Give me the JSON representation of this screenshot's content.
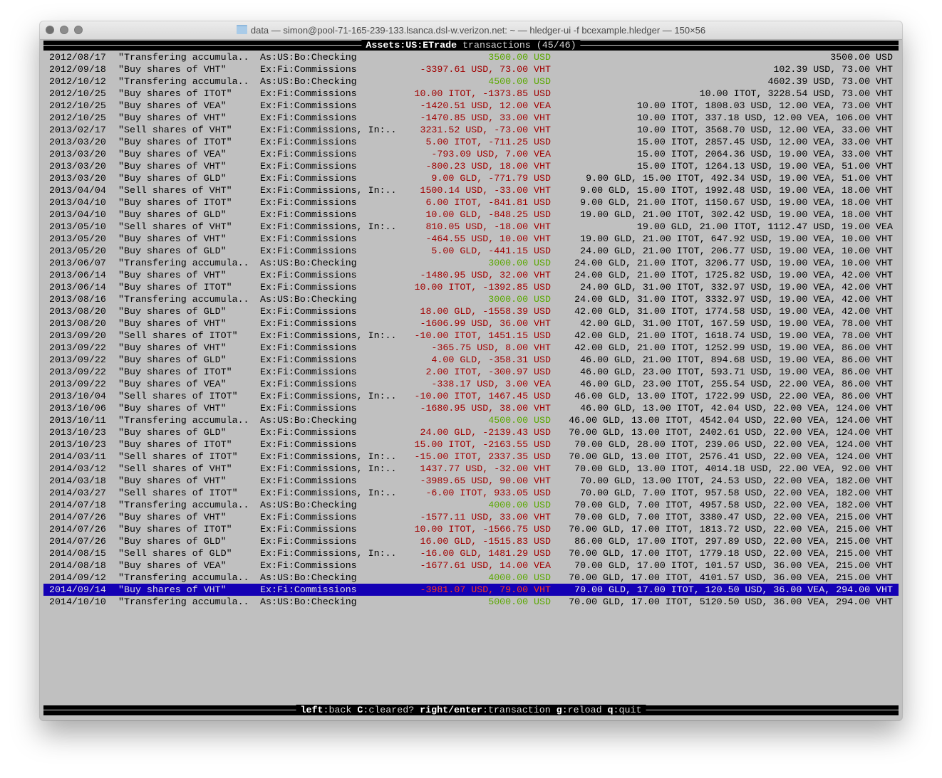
{
  "window": {
    "title": "data — simon@pool-71-165-239-133.lsanca.dsl-w.verizon.net: ~ — hledger-ui -f bcexample.hledger — 150×56"
  },
  "header": {
    "account": "Assets:US:ETrade",
    "suffix": " transactions (45/46)"
  },
  "footer": {
    "keys": [
      {
        "key": "left",
        "action": "back"
      },
      {
        "key": "C",
        "action": "cleared?"
      },
      {
        "key": "right/enter",
        "action": "transaction"
      },
      {
        "key": "g",
        "action": "reload"
      },
      {
        "key": "q",
        "action": "quit"
      }
    ]
  },
  "colors": {
    "terminal_bg": "#c0c0c0",
    "negative_amount": "#a00000",
    "positive_amount": "#5aa800",
    "selection_bg": "#1400b4"
  },
  "selected_index": 44,
  "rows": [
    {
      "date": "2012/08/17",
      "desc": "\"Transfering accumula..",
      "acct": "As:US:Bo:Checking",
      "amt": "3500.00 USD",
      "color": "green",
      "bal": "3500.00 USD"
    },
    {
      "date": "2012/09/18",
      "desc": "\"Buy shares of VHT\"",
      "acct": "Ex:Fi:Commissions",
      "amt": "-3397.61 USD, 73.00 VHT",
      "color": "red",
      "bal": "102.39 USD, 73.00 VHT"
    },
    {
      "date": "2012/10/12",
      "desc": "\"Transfering accumula..",
      "acct": "As:US:Bo:Checking",
      "amt": "4500.00 USD",
      "color": "green",
      "bal": "4602.39 USD, 73.00 VHT"
    },
    {
      "date": "2012/10/25",
      "desc": "\"Buy shares of ITOT\"",
      "acct": "Ex:Fi:Commissions",
      "amt": "10.00 ITOT, -1373.85 USD",
      "color": "red",
      "bal": "10.00 ITOT, 3228.54 USD, 73.00 VHT"
    },
    {
      "date": "2012/10/25",
      "desc": "\"Buy shares of VEA\"",
      "acct": "Ex:Fi:Commissions",
      "amt": "-1420.51 USD, 12.00 VEA",
      "color": "red",
      "bal": "10.00 ITOT, 1808.03 USD, 12.00 VEA, 73.00 VHT"
    },
    {
      "date": "2012/10/25",
      "desc": "\"Buy shares of VHT\"",
      "acct": "Ex:Fi:Commissions",
      "amt": "-1470.85 USD, 33.00 VHT",
      "color": "red",
      "bal": "10.00 ITOT, 337.18 USD, 12.00 VEA, 106.00 VHT"
    },
    {
      "date": "2013/02/17",
      "desc": "\"Sell shares of VHT\"",
      "acct": "Ex:Fi:Commissions, In:..",
      "amt": "3231.52 USD, -73.00 VHT",
      "color": "red",
      "bal": "10.00 ITOT, 3568.70 USD, 12.00 VEA, 33.00 VHT"
    },
    {
      "date": "2013/03/20",
      "desc": "\"Buy shares of ITOT\"",
      "acct": "Ex:Fi:Commissions",
      "amt": "5.00 ITOT, -711.25 USD",
      "color": "red",
      "bal": "15.00 ITOT, 2857.45 USD, 12.00 VEA, 33.00 VHT"
    },
    {
      "date": "2013/03/20",
      "desc": "\"Buy shares of VEA\"",
      "acct": "Ex:Fi:Commissions",
      "amt": "-793.09 USD, 7.00 VEA",
      "color": "red",
      "bal": "15.00 ITOT, 2064.36 USD, 19.00 VEA, 33.00 VHT"
    },
    {
      "date": "2013/03/20",
      "desc": "\"Buy shares of VHT\"",
      "acct": "Ex:Fi:Commissions",
      "amt": "-800.23 USD, 18.00 VHT",
      "color": "red",
      "bal": "15.00 ITOT, 1264.13 USD, 19.00 VEA, 51.00 VHT"
    },
    {
      "date": "2013/03/20",
      "desc": "\"Buy shares of GLD\"",
      "acct": "Ex:Fi:Commissions",
      "amt": "9.00 GLD, -771.79 USD",
      "color": "red",
      "bal": "9.00 GLD, 15.00 ITOT, 492.34 USD, 19.00 VEA, 51.00 VHT"
    },
    {
      "date": "2013/04/04",
      "desc": "\"Sell shares of VHT\"",
      "acct": "Ex:Fi:Commissions, In:..",
      "amt": "1500.14 USD, -33.00 VHT",
      "color": "red",
      "bal": "9.00 GLD, 15.00 ITOT, 1992.48 USD, 19.00 VEA, 18.00 VHT"
    },
    {
      "date": "2013/04/10",
      "desc": "\"Buy shares of ITOT\"",
      "acct": "Ex:Fi:Commissions",
      "amt": "6.00 ITOT, -841.81 USD",
      "color": "red",
      "bal": "9.00 GLD, 21.00 ITOT, 1150.67 USD, 19.00 VEA, 18.00 VHT"
    },
    {
      "date": "2013/04/10",
      "desc": "\"Buy shares of GLD\"",
      "acct": "Ex:Fi:Commissions",
      "amt": "10.00 GLD, -848.25 USD",
      "color": "red",
      "bal": "19.00 GLD, 21.00 ITOT, 302.42 USD, 19.00 VEA, 18.00 VHT"
    },
    {
      "date": "2013/05/10",
      "desc": "\"Sell shares of VHT\"",
      "acct": "Ex:Fi:Commissions, In:..",
      "amt": "810.05 USD, -18.00 VHT",
      "color": "red",
      "bal": "19.00 GLD, 21.00 ITOT, 1112.47 USD, 19.00 VEA"
    },
    {
      "date": "2013/05/20",
      "desc": "\"Buy shares of VHT\"",
      "acct": "Ex:Fi:Commissions",
      "amt": "-464.55 USD, 10.00 VHT",
      "color": "red",
      "bal": "19.00 GLD, 21.00 ITOT, 647.92 USD, 19.00 VEA, 10.00 VHT"
    },
    {
      "date": "2013/05/20",
      "desc": "\"Buy shares of GLD\"",
      "acct": "Ex:Fi:Commissions",
      "amt": "5.00 GLD, -441.15 USD",
      "color": "red",
      "bal": "24.00 GLD, 21.00 ITOT, 206.77 USD, 19.00 VEA, 10.00 VHT"
    },
    {
      "date": "2013/06/07",
      "desc": "\"Transfering accumula..",
      "acct": "As:US:Bo:Checking",
      "amt": "3000.00 USD",
      "color": "green",
      "bal": "24.00 GLD, 21.00 ITOT, 3206.77 USD, 19.00 VEA, 10.00 VHT"
    },
    {
      "date": "2013/06/14",
      "desc": "\"Buy shares of VHT\"",
      "acct": "Ex:Fi:Commissions",
      "amt": "-1480.95 USD, 32.00 VHT",
      "color": "red",
      "bal": "24.00 GLD, 21.00 ITOT, 1725.82 USD, 19.00 VEA, 42.00 VHT"
    },
    {
      "date": "2013/06/14",
      "desc": "\"Buy shares of ITOT\"",
      "acct": "Ex:Fi:Commissions",
      "amt": "10.00 ITOT, -1392.85 USD",
      "color": "red",
      "bal": "24.00 GLD, 31.00 ITOT, 332.97 USD, 19.00 VEA, 42.00 VHT"
    },
    {
      "date": "2013/08/16",
      "desc": "\"Transfering accumula..",
      "acct": "As:US:Bo:Checking",
      "amt": "3000.00 USD",
      "color": "green",
      "bal": "24.00 GLD, 31.00 ITOT, 3332.97 USD, 19.00 VEA, 42.00 VHT"
    },
    {
      "date": "2013/08/20",
      "desc": "\"Buy shares of GLD\"",
      "acct": "Ex:Fi:Commissions",
      "amt": "18.00 GLD, -1558.39 USD",
      "color": "red",
      "bal": "42.00 GLD, 31.00 ITOT, 1774.58 USD, 19.00 VEA, 42.00 VHT"
    },
    {
      "date": "2013/08/20",
      "desc": "\"Buy shares of VHT\"",
      "acct": "Ex:Fi:Commissions",
      "amt": "-1606.99 USD, 36.00 VHT",
      "color": "red",
      "bal": "42.00 GLD, 31.00 ITOT, 167.59 USD, 19.00 VEA, 78.00 VHT"
    },
    {
      "date": "2013/09/20",
      "desc": "\"Sell shares of ITOT\"",
      "acct": "Ex:Fi:Commissions, In:..",
      "amt": "-10.00 ITOT, 1451.15 USD",
      "color": "red",
      "bal": "42.00 GLD, 21.00 ITOT, 1618.74 USD, 19.00 VEA, 78.00 VHT"
    },
    {
      "date": "2013/09/22",
      "desc": "\"Buy shares of VHT\"",
      "acct": "Ex:Fi:Commissions",
      "amt": "-365.75 USD, 8.00 VHT",
      "color": "red",
      "bal": "42.00 GLD, 21.00 ITOT, 1252.99 USD, 19.00 VEA, 86.00 VHT"
    },
    {
      "date": "2013/09/22",
      "desc": "\"Buy shares of GLD\"",
      "acct": "Ex:Fi:Commissions",
      "amt": "4.00 GLD, -358.31 USD",
      "color": "red",
      "bal": "46.00 GLD, 21.00 ITOT, 894.68 USD, 19.00 VEA, 86.00 VHT"
    },
    {
      "date": "2013/09/22",
      "desc": "\"Buy shares of ITOT\"",
      "acct": "Ex:Fi:Commissions",
      "amt": "2.00 ITOT, -300.97 USD",
      "color": "red",
      "bal": "46.00 GLD, 23.00 ITOT, 593.71 USD, 19.00 VEA, 86.00 VHT"
    },
    {
      "date": "2013/09/22",
      "desc": "\"Buy shares of VEA\"",
      "acct": "Ex:Fi:Commissions",
      "amt": "-338.17 USD, 3.00 VEA",
      "color": "red",
      "bal": "46.00 GLD, 23.00 ITOT, 255.54 USD, 22.00 VEA, 86.00 VHT"
    },
    {
      "date": "2013/10/04",
      "desc": "\"Sell shares of ITOT\"",
      "acct": "Ex:Fi:Commissions, In:..",
      "amt": "-10.00 ITOT, 1467.45 USD",
      "color": "red",
      "bal": "46.00 GLD, 13.00 ITOT, 1722.99 USD, 22.00 VEA, 86.00 VHT"
    },
    {
      "date": "2013/10/06",
      "desc": "\"Buy shares of VHT\"",
      "acct": "Ex:Fi:Commissions",
      "amt": "-1680.95 USD, 38.00 VHT",
      "color": "red",
      "bal": "46.00 GLD, 13.00 ITOT, 42.04 USD, 22.00 VEA, 124.00 VHT"
    },
    {
      "date": "2013/10/11",
      "desc": "\"Transfering accumula..",
      "acct": "As:US:Bo:Checking",
      "amt": "4500.00 USD",
      "color": "green",
      "bal": "46.00 GLD, 13.00 ITOT, 4542.04 USD, 22.00 VEA, 124.00 VHT"
    },
    {
      "date": "2013/10/23",
      "desc": "\"Buy shares of GLD\"",
      "acct": "Ex:Fi:Commissions",
      "amt": "24.00 GLD, -2139.43 USD",
      "color": "red",
      "bal": "70.00 GLD, 13.00 ITOT, 2402.61 USD, 22.00 VEA, 124.00 VHT"
    },
    {
      "date": "2013/10/23",
      "desc": "\"Buy shares of ITOT\"",
      "acct": "Ex:Fi:Commissions",
      "amt": "15.00 ITOT, -2163.55 USD",
      "color": "red",
      "bal": "70.00 GLD, 28.00 ITOT, 239.06 USD, 22.00 VEA, 124.00 VHT"
    },
    {
      "date": "2014/03/11",
      "desc": "\"Sell shares of ITOT\"",
      "acct": "Ex:Fi:Commissions, In:..",
      "amt": "-15.00 ITOT, 2337.35 USD",
      "color": "red",
      "bal": "70.00 GLD, 13.00 ITOT, 2576.41 USD, 22.00 VEA, 124.00 VHT"
    },
    {
      "date": "2014/03/12",
      "desc": "\"Sell shares of VHT\"",
      "acct": "Ex:Fi:Commissions, In:..",
      "amt": "1437.77 USD, -32.00 VHT",
      "color": "red",
      "bal": "70.00 GLD, 13.00 ITOT, 4014.18 USD, 22.00 VEA, 92.00 VHT"
    },
    {
      "date": "2014/03/18",
      "desc": "\"Buy shares of VHT\"",
      "acct": "Ex:Fi:Commissions",
      "amt": "-3989.65 USD, 90.00 VHT",
      "color": "red",
      "bal": "70.00 GLD, 13.00 ITOT, 24.53 USD, 22.00 VEA, 182.00 VHT"
    },
    {
      "date": "2014/03/27",
      "desc": "\"Sell shares of ITOT\"",
      "acct": "Ex:Fi:Commissions, In:..",
      "amt": "-6.00 ITOT, 933.05 USD",
      "color": "red",
      "bal": "70.00 GLD, 7.00 ITOT, 957.58 USD, 22.00 VEA, 182.00 VHT"
    },
    {
      "date": "2014/07/18",
      "desc": "\"Transfering accumula..",
      "acct": "As:US:Bo:Checking",
      "amt": "4000.00 USD",
      "color": "green",
      "bal": "70.00 GLD, 7.00 ITOT, 4957.58 USD, 22.00 VEA, 182.00 VHT"
    },
    {
      "date": "2014/07/26",
      "desc": "\"Buy shares of VHT\"",
      "acct": "Ex:Fi:Commissions",
      "amt": "-1577.11 USD, 33.00 VHT",
      "color": "red",
      "bal": "70.00 GLD, 7.00 ITOT, 3380.47 USD, 22.00 VEA, 215.00 VHT"
    },
    {
      "date": "2014/07/26",
      "desc": "\"Buy shares of ITOT\"",
      "acct": "Ex:Fi:Commissions",
      "amt": "10.00 ITOT, -1566.75 USD",
      "color": "red",
      "bal": "70.00 GLD, 17.00 ITOT, 1813.72 USD, 22.00 VEA, 215.00 VHT"
    },
    {
      "date": "2014/07/26",
      "desc": "\"Buy shares of GLD\"",
      "acct": "Ex:Fi:Commissions",
      "amt": "16.00 GLD, -1515.83 USD",
      "color": "red",
      "bal": "86.00 GLD, 17.00 ITOT, 297.89 USD, 22.00 VEA, 215.00 VHT"
    },
    {
      "date": "2014/08/15",
      "desc": "\"Sell shares of GLD\"",
      "acct": "Ex:Fi:Commissions, In:..",
      "amt": "-16.00 GLD, 1481.29 USD",
      "color": "red",
      "bal": "70.00 GLD, 17.00 ITOT, 1779.18 USD, 22.00 VEA, 215.00 VHT"
    },
    {
      "date": "2014/08/18",
      "desc": "\"Buy shares of VEA\"",
      "acct": "Ex:Fi:Commissions",
      "amt": "-1677.61 USD, 14.00 VEA",
      "color": "red",
      "bal": "70.00 GLD, 17.00 ITOT, 101.57 USD, 36.00 VEA, 215.00 VHT"
    },
    {
      "date": "2014/09/12",
      "desc": "\"Transfering accumula..",
      "acct": "As:US:Bo:Checking",
      "amt": "4000.00 USD",
      "color": "green",
      "bal": "70.00 GLD, 17.00 ITOT, 4101.57 USD, 36.00 VEA, 215.00 VHT"
    },
    {
      "date": "2014/09/14",
      "desc": "\"Buy shares of VHT\"",
      "acct": "Ex:Fi:Commissions",
      "amt": "-3981.07 USD, 79.00 VHT",
      "color": "red",
      "bal": "70.00 GLD, 17.00 ITOT, 120.50 USD, 36.00 VEA, 294.00 VHT"
    },
    {
      "date": "2014/10/10",
      "desc": "\"Transfering accumula..",
      "acct": "As:US:Bo:Checking",
      "amt": "5000.00 USD",
      "color": "green",
      "bal": "70.00 GLD, 17.00 ITOT, 5120.50 USD, 36.00 VEA, 294.00 VHT"
    }
  ]
}
